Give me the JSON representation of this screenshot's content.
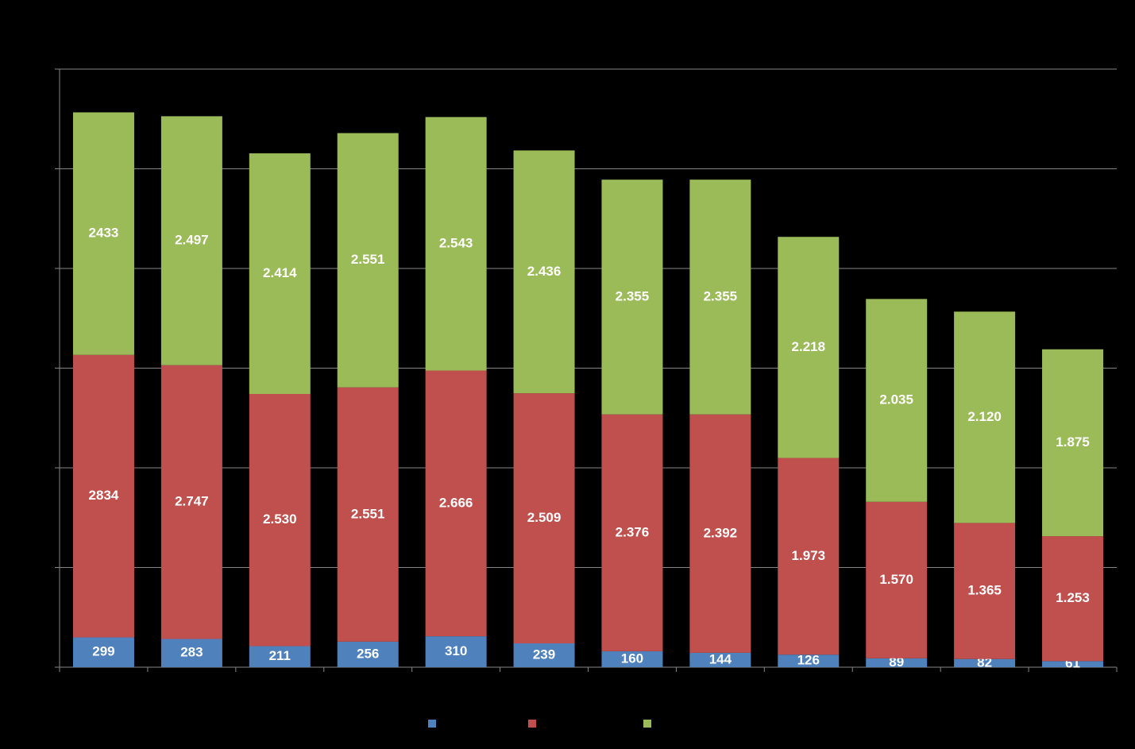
{
  "chart_data": {
    "type": "stacked-bar",
    "categories": [
      null,
      null,
      null,
      null,
      null,
      null,
      null,
      null,
      null,
      null,
      null,
      null
    ],
    "series": [
      {
        "color": "#4f81bd",
        "values": [
          299,
          283,
          211,
          256,
          310,
          239,
          160,
          144,
          126,
          89,
          82,
          61
        ]
      },
      {
        "color": "#c0504d",
        "values": [
          2834,
          2747,
          2530,
          2551,
          2666,
          2509,
          2376,
          2392,
          1973,
          1570,
          1365,
          1253
        ],
        "value_labels": [
          "2834",
          "2.747",
          "2.530",
          "2.551",
          "2.666",
          "2.509",
          "2.376",
          "2.392",
          "1.973",
          "1.570",
          "1.365",
          "1.253"
        ]
      },
      {
        "color": "#9bbb59",
        "values": [
          2433,
          2497,
          2414,
          2551,
          2543,
          2436,
          2355,
          2355,
          2218,
          2035,
          2120,
          1875
        ],
        "value_labels": [
          "2433",
          "2.497",
          "2.414",
          "2.551",
          "2.543",
          "2.436",
          "2.355",
          "2.355",
          "2.218",
          "2.035",
          "2.120",
          "1.875"
        ]
      }
    ],
    "ylim": [
      0,
      6000
    ],
    "yticks": [
      0,
      1000,
      2000,
      3000,
      4000,
      5000,
      6000
    ],
    "grid": true
  }
}
